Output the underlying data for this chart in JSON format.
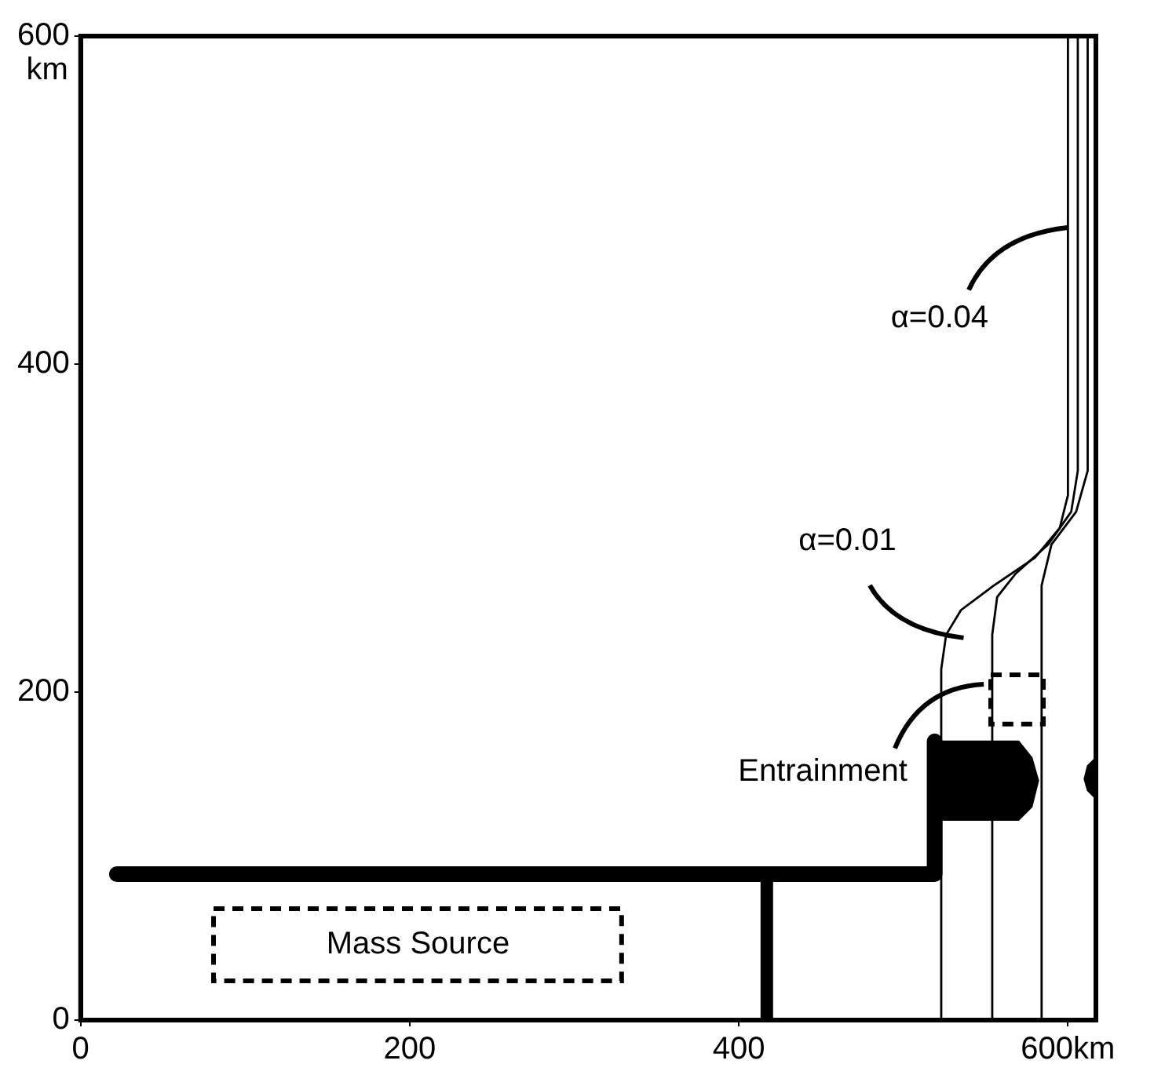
{
  "chart_data": {
    "type": "line",
    "ylabel": "km",
    "xlim": [
      0,
      617
    ],
    "ylim": [
      0,
      600
    ],
    "xticks": [
      0,
      200,
      400,
      {
        "value": 600,
        "label": "600km"
      }
    ],
    "yticks": [
      0,
      200,
      400,
      600
    ],
    "grid": false,
    "legend": false,
    "marker": "none",
    "line_style": "solid",
    "series": [
      {
        "color": "#000000",
        "x": [
          22,
          519,
          519
        ],
        "values": [
          89,
          89,
          170
        ]
      },
      {
        "color": "#000000",
        "x": [
          417,
          417
        ],
        "values": [
          0,
          89
        ]
      },
      {
        "type": "area",
        "color": "#000000",
        "x": [
          519,
          519,
          570,
          578,
          582,
          578,
          570,
          519
        ],
        "values": [
          122,
          170,
          170,
          160,
          146,
          130,
          122,
          122
        ]
      },
      {
        "type": "area",
        "color": "#000000",
        "x": [
          617,
          612,
          610,
          612,
          617,
          617
        ],
        "values": [
          160,
          155,
          147,
          140,
          135,
          160
        ]
      },
      {
        "color": "#000000",
        "x": [
          523,
          523,
          526,
          535,
          555,
          580,
          595,
          600,
          600
        ],
        "values": [
          0,
          214,
          235,
          250,
          265,
          282,
          300,
          320,
          600
        ]
      },
      {
        "color": "#000000",
        "x": [
          554,
          554,
          557,
          568,
          588,
          602,
          606,
          606
        ],
        "values": [
          0,
          235,
          258,
          272,
          290,
          310,
          335,
          600
        ]
      },
      {
        "color": "#000000",
        "x": [
          584,
          584,
          590,
          605,
          612,
          612
        ],
        "values": [
          0,
          265,
          290,
          310,
          335,
          600
        ]
      }
    ],
    "annotations": [
      {
        "text": "α=0.04",
        "x": 600,
        "y": 483
      },
      "α=0.01",
      "Entrainment",
      "Mass Source"
    ]
  }
}
